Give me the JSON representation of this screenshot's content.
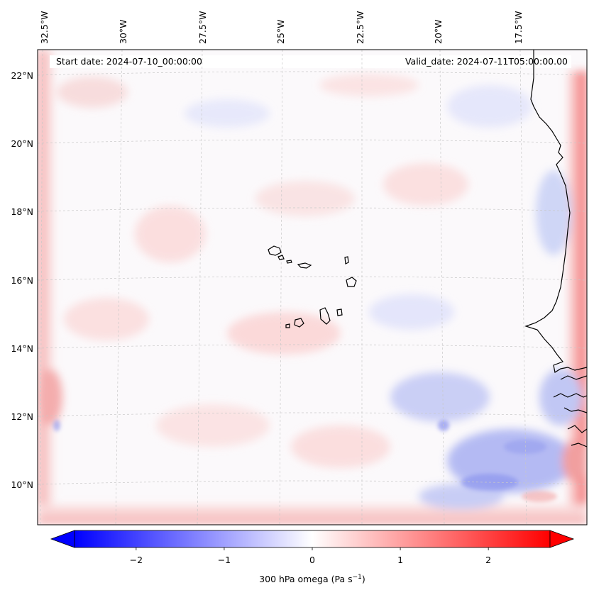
{
  "map": {
    "start_date": "Start date: 2024-07-10_00:00:00",
    "valid_date": "Valid_date: 2024-07-11T05:00:00.00",
    "lon_labels": [
      "32.5°W",
      "30°W",
      "27.5°W",
      "25°W",
      "22.5°W",
      "20°W",
      "17.5°W"
    ],
    "lat_labels": [
      "22°N",
      "20°N",
      "18°N",
      "16°N",
      "14°N",
      "12°N",
      "10°N"
    ],
    "field": "300 hPa omega",
    "units_base": "(Pa s",
    "units_exp": "−1",
    "units_close": ")"
  },
  "colorbar": {
    "ticks": [
      "−2",
      "−1",
      "0",
      "1",
      "2"
    ],
    "min": -2.7,
    "max": 2.7,
    "low_color": "#0000ff",
    "mid_color": "#ffffff",
    "high_color": "#ff0000"
  },
  "colors": {
    "positive_tint": "#f7c8c8",
    "negative_tint": "#c8ccf7",
    "coastline": "#000000",
    "gridline": "#c8c8c8"
  }
}
